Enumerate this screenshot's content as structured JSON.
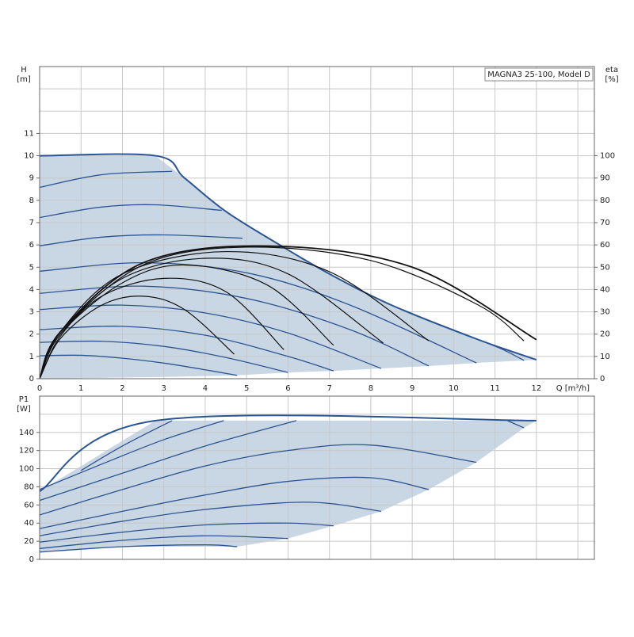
{
  "chart_data": [
    {
      "type": "line",
      "annotation": "MAGNA3 25-100, Model D",
      "ylabel": "H",
      "yunit": "[m]",
      "y2label": "eta",
      "y2unit": "[%]",
      "xlabel": "Q [m³/h]",
      "xlim": [
        0,
        13.4
      ],
      "xticks": [
        0,
        1,
        2,
        3,
        4,
        5,
        6,
        7,
        8,
        9,
        10,
        11,
        12
      ],
      "show_xtick_labels": true,
      "ylim": [
        0,
        14
      ],
      "yticks": [
        0,
        1,
        2,
        3,
        4,
        5,
        6,
        7,
        8,
        9,
        10,
        11
      ],
      "y2lim": [
        0,
        140
      ],
      "y2ticks": [
        0,
        10,
        20,
        30,
        40,
        50,
        60,
        70,
        80,
        90,
        100
      ],
      "grid": true,
      "region": {
        "color": "#c9d6e4",
        "x": [
          0,
          0,
          2.8,
          3.5,
          4.5,
          5.8,
          7,
          8.5,
          10.6,
          12,
          10.55,
          9.4,
          8.25,
          7.1,
          6,
          4.77,
          3
        ],
        "values": [
          0,
          10,
          10,
          9,
          7.5,
          6,
          4.7,
          3.3,
          1.75,
          0.85,
          0.71,
          0.57,
          0.46,
          0.35,
          0.28,
          0.15,
          0.08
        ]
      },
      "series": [
        {
          "color": "#2b5592",
          "width": 2,
          "x": [
            0,
            2.8,
            3.5,
            4.5,
            5.8,
            7,
            8.5,
            10.6,
            12
          ],
          "values": [
            10,
            10,
            9,
            7.5,
            6,
            4.7,
            3.3,
            1.75,
            0.85
          ]
        },
        {
          "color": "#2b5592",
          "width": 1.3,
          "x": [
            0,
            1,
            2,
            3,
            4,
            4.77
          ],
          "values": [
            1.03,
            1.05,
            0.92,
            0.7,
            0.4,
            0.15
          ]
        },
        {
          "color": "#2b5592",
          "width": 1.3,
          "x": [
            0,
            1.5,
            3,
            4.5,
            6
          ],
          "values": [
            1.63,
            1.68,
            1.45,
            0.95,
            0.28
          ]
        },
        {
          "color": "#2b5592",
          "width": 1.3,
          "x": [
            0,
            2,
            4,
            6,
            7.1
          ],
          "values": [
            2.2,
            2.35,
            1.95,
            1.0,
            0.35
          ]
        },
        {
          "color": "#2b5592",
          "width": 1.3,
          "x": [
            0,
            2,
            4,
            6,
            8.25
          ],
          "values": [
            3.1,
            3.3,
            2.95,
            2.05,
            0.46
          ]
        },
        {
          "color": "#2b5592",
          "width": 1.3,
          "x": [
            0,
            2.5,
            5,
            7.5,
            9.4
          ],
          "values": [
            3.83,
            4.15,
            3.6,
            2.2,
            0.57
          ]
        },
        {
          "color": "#2b5592",
          "width": 1.3,
          "x": [
            0,
            2.5,
            5,
            7.5,
            10.55
          ],
          "values": [
            4.82,
            5.2,
            4.75,
            3.3,
            0.71
          ]
        },
        {
          "color": "#2b5592",
          "width": 1.3,
          "x": [
            0,
            1.5,
            3,
            4.9
          ],
          "values": [
            5.96,
            6.35,
            6.45,
            6.3
          ]
        },
        {
          "color": "#2b5592",
          "width": 1.3,
          "x": [
            0,
            1.5,
            2.8,
            4.4
          ],
          "values": [
            7.23,
            7.7,
            7.8,
            7.55
          ]
        },
        {
          "color": "#2b5592",
          "width": 1.3,
          "x": [
            0,
            1.5,
            3.2
          ],
          "values": [
            8.58,
            9.15,
            9.3
          ]
        },
        {
          "color": "#2b5592",
          "width": 1.3,
          "x": [
            10.6,
            11.2,
            11.7
          ],
          "values": [
            1.75,
            1.3,
            0.82
          ]
        },
        {
          "color": "#111111",
          "width": 1.2,
          "axis": "y2",
          "x": [
            0,
            0.5,
            1.5,
            2.5,
            3.5,
            4.7
          ],
          "values": [
            0,
            18,
            33,
            37,
            31,
            11
          ]
        },
        {
          "color": "#111111",
          "width": 1.2,
          "axis": "y2",
          "x": [
            0,
            0.5,
            1.5,
            3,
            4.5,
            5.9
          ],
          "values": [
            0,
            19,
            37,
            45,
            39,
            13
          ]
        },
        {
          "color": "#111111",
          "width": 1.2,
          "axis": "y2",
          "x": [
            0,
            0.5,
            2,
            3.5,
            5.5,
            7.1
          ],
          "values": [
            0,
            20,
            43,
            51,
            42,
            15
          ]
        },
        {
          "color": "#111111",
          "width": 1.2,
          "axis": "y2",
          "x": [
            0,
            0.5,
            2,
            4,
            6,
            8.3
          ],
          "values": [
            0,
            20,
            45,
            54,
            47,
            16
          ]
        },
        {
          "color": "#111111",
          "width": 1.2,
          "axis": "y2",
          "x": [
            0,
            0.5,
            2,
            4.5,
            7,
            9.4
          ],
          "values": [
            0,
            21,
            47,
            57,
            48,
            17
          ]
        },
        {
          "color": "#111111",
          "width": 1.2,
          "axis": "y2",
          "x": [
            0,
            0.5,
            2.5,
            5,
            8,
            10.6,
            11.7
          ],
          "values": [
            0,
            21,
            51,
            59,
            53,
            33,
            17
          ]
        },
        {
          "color": "#111111",
          "width": 1.8,
          "axis": "y2",
          "x": [
            0,
            0.5,
            2.5,
            5.5,
            9,
            12
          ],
          "values": [
            0,
            21,
            52,
            59.5,
            50,
            17.5
          ]
        }
      ]
    },
    {
      "type": "line",
      "ylabel": "P1",
      "yunit": "[W]",
      "xlim": [
        0,
        13.4
      ],
      "xticks": [
        0,
        1,
        2,
        3,
        4,
        5,
        6,
        7,
        8,
        9,
        10,
        11,
        12
      ],
      "show_xtick_labels": false,
      "ylim": [
        0,
        180
      ],
      "yticks": [
        0,
        20,
        40,
        60,
        80,
        100,
        120,
        140
      ],
      "grid": true,
      "region": {
        "color": "#c9d6e4",
        "x": [
          0,
          2.8,
          12,
          11.7,
          10.55,
          9.4,
          8.25,
          7.1,
          6,
          4.77,
          2,
          0
        ],
        "values": [
          75,
          153,
          153,
          145,
          107,
          77,
          53,
          37,
          23,
          14,
          14,
          8
        ]
      },
      "series": [
        {
          "color": "#2b5592",
          "width": 2,
          "x": [
            0,
            2.8,
            12
          ],
          "values": [
            75,
            153,
            153
          ]
        },
        {
          "color": "#2b5592",
          "width": 1.3,
          "x": [
            0,
            2,
            4,
            4.77
          ],
          "values": [
            8,
            14,
            16,
            14
          ]
        },
        {
          "color": "#2b5592",
          "width": 1.3,
          "x": [
            0,
            2,
            4,
            6
          ],
          "values": [
            12,
            21,
            26,
            23
          ]
        },
        {
          "color": "#2b5592",
          "width": 1.3,
          "x": [
            0,
            2,
            4,
            6,
            7.1
          ],
          "values": [
            19,
            30,
            38,
            40,
            37
          ]
        },
        {
          "color": "#2b5592",
          "width": 1.3,
          "x": [
            0,
            2,
            4,
            6.5,
            8.25
          ],
          "values": [
            26,
            42,
            55,
            63,
            53
          ]
        },
        {
          "color": "#2b5592",
          "width": 1.3,
          "x": [
            0,
            2,
            4,
            6,
            8,
            9.4
          ],
          "values": [
            34,
            53,
            71,
            86,
            90,
            77
          ]
        },
        {
          "color": "#2b5592",
          "width": 1.3,
          "x": [
            0,
            2,
            4,
            6,
            8,
            10.55
          ],
          "values": [
            49,
            77,
            103,
            120,
            126,
            107
          ]
        },
        {
          "color": "#2b5592",
          "width": 1.3,
          "x": [
            0,
            2,
            4,
            6.2
          ],
          "values": [
            65,
            95,
            125,
            153
          ]
        },
        {
          "color": "#2b5592",
          "width": 1.3,
          "x": [
            0,
            1.5,
            3,
            4.45
          ],
          "values": [
            77,
            105,
            132,
            153
          ]
        },
        {
          "color": "#2b5592",
          "width": 1.3,
          "x": [
            1,
            2,
            3.2
          ],
          "values": [
            98,
            125,
            153
          ]
        },
        {
          "color": "#2b5592",
          "width": 1.3,
          "x": [
            11.3,
            11.7
          ],
          "values": [
            153,
            145
          ]
        }
      ]
    }
  ]
}
